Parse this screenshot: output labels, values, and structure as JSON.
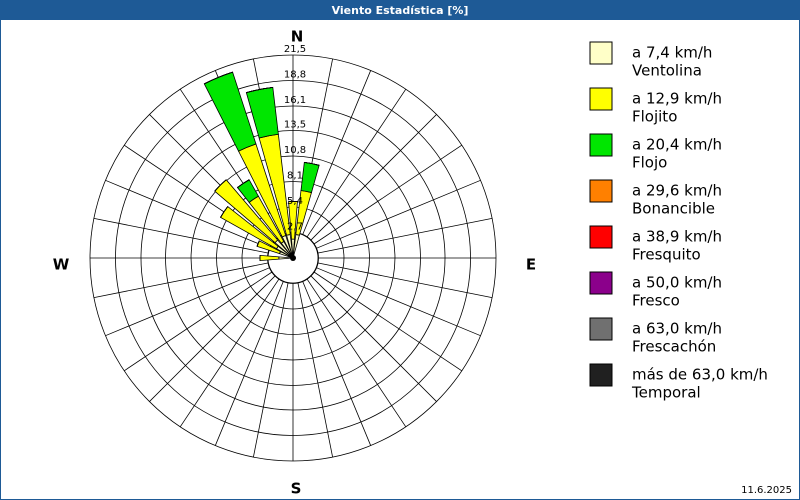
{
  "chart_data": {
    "type": "wind-rose",
    "title": "Viento Estadística [%]",
    "date": "11.6.2025",
    "compass": {
      "north": "N",
      "east": "E",
      "south": "S",
      "west": "W"
    },
    "x": [
      0,
      11.25,
      270,
      292.5,
      303.75,
      315,
      326.25,
      337.5,
      348.75
    ],
    "rlim": [
      0,
      21.5
    ],
    "rticks": [
      {
        "value": 2.7,
        "label": "2,7"
      },
      {
        "value": 5.4,
        "label": "5,4"
      },
      {
        "value": 8.1,
        "label": "8,1"
      },
      {
        "value": 10.8,
        "label": "10,8"
      },
      {
        "value": 13.5,
        "label": "13,5"
      },
      {
        "value": 16.1,
        "label": "16,1"
      },
      {
        "value": 18.8,
        "label": "18,8"
      },
      {
        "value": 21.5,
        "label": "21,5"
      }
    ],
    "series": [
      {
        "name": "a 7,4 km/h",
        "description": "Ventolina",
        "color": "#ffffc8",
        "values": [
          2,
          2.5,
          1.5,
          1.5,
          2,
          2.5,
          2,
          2.5,
          2.5
        ]
      },
      {
        "name": "a 12,9 km/h",
        "description": "Flojito",
        "color": "#ffff00",
        "values": [
          4,
          4.7,
          2,
          2.5,
          6.8,
          8.4,
          5.5,
          10.2,
          10.7
        ]
      },
      {
        "name": "a 20,4 km/h",
        "description": "Flojo",
        "color": "#00e600",
        "values": [
          0,
          3,
          0,
          0,
          0,
          0,
          2,
          8,
          5
        ]
      },
      {
        "name": "a 29,6 km/h",
        "description": "Bonancible",
        "color": "#ff8000",
        "values": [
          0,
          0,
          0,
          0,
          0,
          0,
          0,
          0,
          0
        ]
      },
      {
        "name": "a 38,9 km/h",
        "description": "Fresquito",
        "color": "#ff0000",
        "values": [
          0,
          0,
          0,
          0,
          0,
          0,
          0,
          0,
          0
        ]
      },
      {
        "name": "a 50,0 km/h",
        "description": "Fresco",
        "color": "#8b008b",
        "values": [
          0,
          0,
          0,
          0,
          0,
          0,
          0,
          0,
          0
        ]
      },
      {
        "name": "a 63,0 km/h",
        "description": "Frescachón",
        "color": "#707070",
        "values": [
          0,
          0,
          0,
          0,
          0,
          0,
          0,
          0,
          0
        ]
      },
      {
        "name": "más de 63,0 km/h",
        "description": "Temporal",
        "color": "#202020",
        "values": [
          0,
          0,
          0,
          0,
          0,
          0,
          0,
          0,
          0
        ]
      }
    ]
  }
}
